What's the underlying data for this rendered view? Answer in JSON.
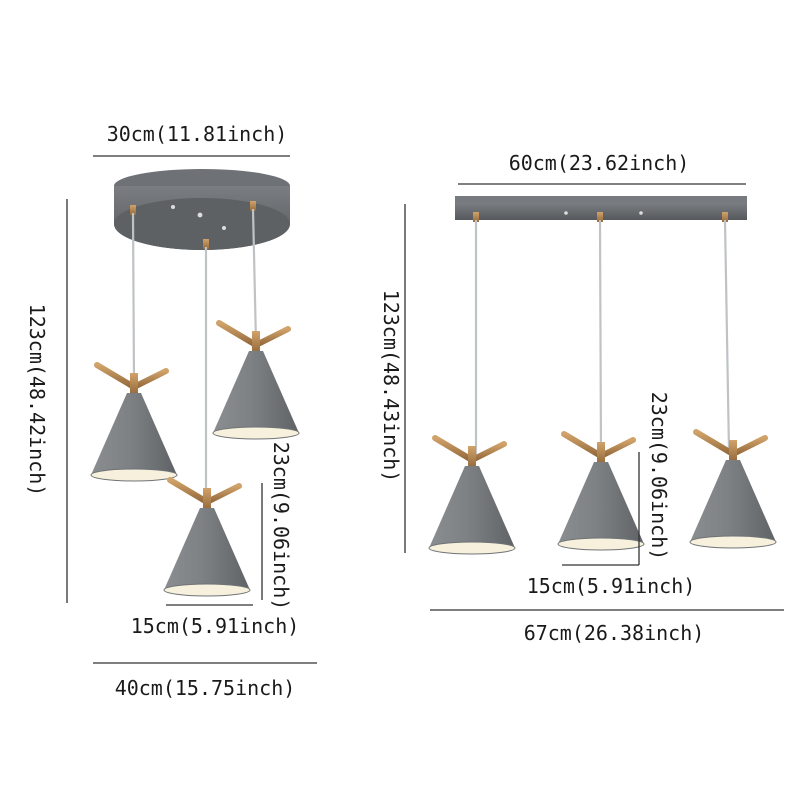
{
  "left_fixture": {
    "top_width": "30cm(11.81inch)",
    "height": "123cm(48.42inch)",
    "shade_height": "23cm(9.06inch)",
    "shade_width": "15cm(5.91inch)",
    "total_width": "40cm(15.75inch)"
  },
  "right_fixture": {
    "bar_width": "60cm(23.62inch)",
    "height": "123cm(48.43inch)",
    "shade_height": "23cm(9.06inch)",
    "shade_width": "15cm(5.91inch)",
    "total_width": "67cm(26.38inch)"
  },
  "colors": {
    "shade": "#7d8184",
    "shade_dark": "#5f6366",
    "canopy": "#6e7276",
    "brass": "#b8894f",
    "inner": "#f6f0dc"
  }
}
